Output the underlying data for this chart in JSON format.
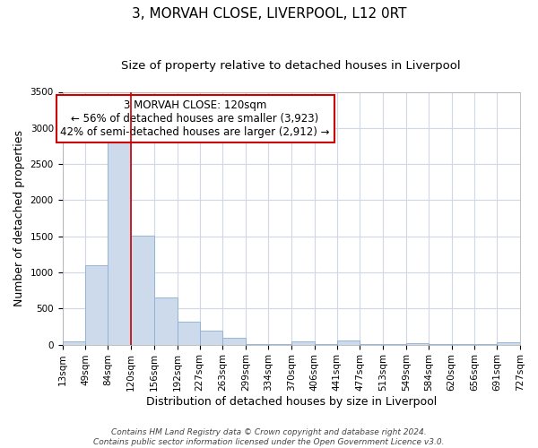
{
  "title": "3, MORVAH CLOSE, LIVERPOOL, L12 0RT",
  "subtitle": "Size of property relative to detached houses in Liverpool",
  "xlabel": "Distribution of detached houses by size in Liverpool",
  "ylabel": "Number of detached properties",
  "bar_color": "#cddaec",
  "bar_edge_color": "#8aafd4",
  "grid_color": "#d0d8e8",
  "background_color": "#ffffff",
  "bin_edges": [
    13,
    49,
    84,
    120,
    156,
    192,
    227,
    263,
    299,
    334,
    370,
    406,
    441,
    477,
    513,
    549,
    584,
    620,
    656,
    691,
    727
  ],
  "bin_labels": [
    "13sqm",
    "49sqm",
    "84sqm",
    "120sqm",
    "156sqm",
    "192sqm",
    "227sqm",
    "263sqm",
    "299sqm",
    "334sqm",
    "370sqm",
    "406sqm",
    "441sqm",
    "477sqm",
    "513sqm",
    "549sqm",
    "584sqm",
    "620sqm",
    "656sqm",
    "691sqm",
    "727sqm"
  ],
  "bar_heights": [
    50,
    1100,
    2920,
    1510,
    650,
    320,
    190,
    95,
    5,
    5,
    50,
    5,
    60,
    5,
    5,
    20,
    5,
    5,
    5,
    30
  ],
  "property_line_x": 120,
  "ylim": [
    0,
    3500
  ],
  "yticks": [
    0,
    500,
    1000,
    1500,
    2000,
    2500,
    3000,
    3500
  ],
  "annotation_text": "3 MORVAH CLOSE: 120sqm\n← 56% of detached houses are smaller (3,923)\n42% of semi-detached houses are larger (2,912) →",
  "annotation_box_color": "#ffffff",
  "annotation_box_edge_color": "#cc0000",
  "footer_line1": "Contains HM Land Registry data © Crown copyright and database right 2024.",
  "footer_line2": "Contains public sector information licensed under the Open Government Licence v3.0.",
  "title_fontsize": 11,
  "subtitle_fontsize": 9.5,
  "axis_label_fontsize": 9,
  "tick_fontsize": 7.5,
  "annotation_fontsize": 8.5,
  "footer_fontsize": 6.5
}
